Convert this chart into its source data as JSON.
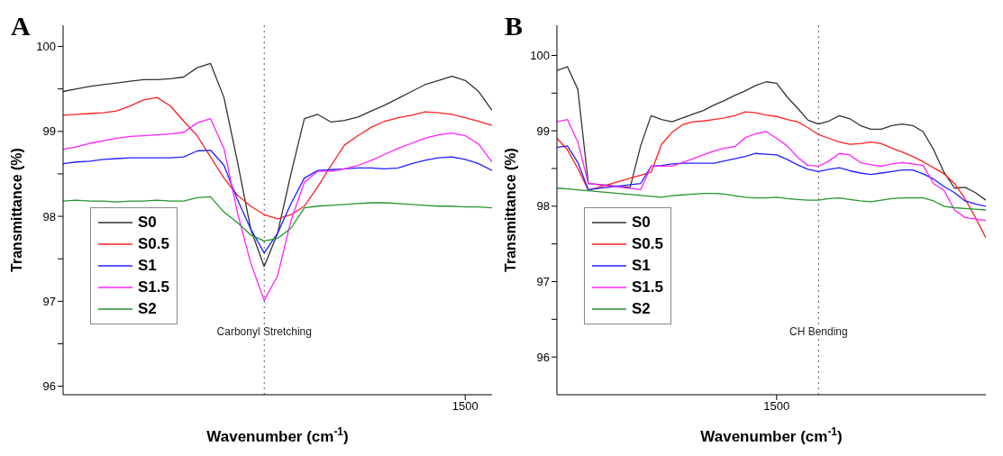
{
  "chart_data": [
    {
      "type": "line",
      "title": "A",
      "xlabel": "Wavenumber (cm$^{-1}$)",
      "ylabel": "Transmittance (%)",
      "categories": [
        null,
        null,
        null,
        null,
        null,
        null,
        null,
        null,
        null,
        null,
        null,
        null,
        null,
        null,
        null,
        null,
        null,
        null,
        null,
        null,
        null,
        null,
        null,
        null,
        null,
        null,
        null,
        null,
        null,
        null,
        "1500",
        null,
        null
      ],
      "ylim": [
        95.9,
        100.25
      ],
      "yticks": [
        96,
        {
          "value": 96.5,
          "label": null
        },
        97,
        {
          "value": 97.5,
          "label": null
        },
        98,
        {
          "value": 98.5,
          "label": null
        },
        99,
        {
          "value": 99.5,
          "label": null
        },
        100
      ],
      "legend": "left",
      "marker": "none",
      "line_style": "solid",
      "annotations": [
        "Carbonyl Stretching"
      ],
      "series": [
        {
          "name": "S0",
          "color": "#333333",
          "values": [
            99.47,
            99.5,
            99.53,
            99.55,
            99.57,
            99.59,
            99.61,
            99.61,
            99.62,
            99.64,
            99.75,
            99.8,
            99.4,
            98.65,
            97.85,
            97.41,
            97.8,
            98.5,
            99.15,
            99.2,
            99.11,
            99.13,
            99.17,
            99.24,
            99.31,
            99.39,
            99.47,
            99.55,
            99.6,
            99.65,
            99.6,
            99.47,
            99.25
          ]
        },
        {
          "name": "S0.5",
          "color": "#ff2020",
          "values": [
            99.19,
            99.2,
            99.21,
            99.22,
            99.24,
            99.3,
            99.37,
            99.4,
            99.3,
            99.12,
            98.95,
            98.7,
            98.45,
            98.25,
            98.12,
            98.02,
            97.97,
            98.02,
            98.12,
            98.35,
            98.6,
            98.84,
            98.95,
            99.05,
            99.12,
            99.16,
            99.19,
            99.23,
            99.22,
            99.2,
            99.16,
            99.12,
            99.07
          ]
        },
        {
          "name": "S1",
          "color": "#2020ff",
          "values": [
            98.62,
            98.64,
            98.65,
            98.67,
            98.68,
            98.69,
            98.69,
            98.69,
            98.69,
            98.7,
            98.77,
            98.78,
            98.6,
            98.2,
            97.85,
            97.57,
            97.8,
            98.15,
            98.45,
            98.54,
            98.55,
            98.56,
            98.57,
            98.57,
            98.56,
            98.57,
            98.62,
            98.66,
            98.69,
            98.7,
            98.67,
            98.62,
            98.54
          ]
        },
        {
          "name": "S1.5",
          "color": "#ff20ff",
          "values": [
            98.79,
            98.82,
            98.86,
            98.89,
            98.92,
            98.94,
            98.95,
            98.96,
            98.97,
            98.99,
            99.1,
            99.15,
            98.8,
            98.05,
            97.45,
            97.01,
            97.3,
            97.95,
            98.4,
            98.53,
            98.53,
            98.56,
            98.6,
            98.66,
            98.73,
            98.8,
            98.86,
            98.92,
            98.96,
            98.98,
            98.95,
            98.85,
            98.64
          ]
        },
        {
          "name": "S2",
          "color": "#22962a",
          "values": [
            98.18,
            98.19,
            98.18,
            98.18,
            98.17,
            98.18,
            98.18,
            98.19,
            98.18,
            98.18,
            98.22,
            98.23,
            98.05,
            97.93,
            97.78,
            97.71,
            97.74,
            97.86,
            98.1,
            98.12,
            98.13,
            98.14,
            98.15,
            98.16,
            98.16,
            98.15,
            98.14,
            98.13,
            98.12,
            98.12,
            98.11,
            98.11,
            98.1
          ]
        }
      ]
    },
    {
      "type": "line",
      "title": "B",
      "xlabel": "Wavenumber (cm$^{-1}$)",
      "ylabel": "Transmittance (%)",
      "categories": [
        null,
        null,
        null,
        null,
        null,
        null,
        null,
        null,
        null,
        null,
        null,
        null,
        null,
        null,
        null,
        null,
        null,
        null,
        null,
        null,
        null,
        "1500",
        null,
        null,
        null,
        null,
        null,
        null,
        null,
        null,
        null,
        null,
        null,
        null,
        null,
        null,
        null,
        null,
        null,
        null,
        null,
        null
      ],
      "ylim": [
        95.5,
        100.4
      ],
      "yticks": [
        96,
        {
          "value": 96.5,
          "label": null
        },
        97,
        {
          "value": 97.5,
          "label": null
        },
        98,
        {
          "value": 98.5,
          "label": null
        },
        99,
        {
          "value": 99.5,
          "label": null
        },
        100
      ],
      "legend": "left",
      "marker": "none",
      "line_style": "solid",
      "annotations": [
        "CH Bending"
      ],
      "series": [
        {
          "name": "S0",
          "color": "#333333",
          "values": [
            99.8,
            99.85,
            99.55,
            98.3,
            null,
            null,
            null,
            98.25,
            98.8,
            99.2,
            99.15,
            99.12,
            99.17,
            99.22,
            99.27,
            99.34,
            99.4,
            99.47,
            99.53,
            99.6,
            99.65,
            99.63,
            99.45,
            99.3,
            99.14,
            99.09,
            99.13,
            99.2,
            99.16,
            99.07,
            99.02,
            99.02,
            99.07,
            99.09,
            99.07,
            98.99,
            98.75,
            98.45,
            98.24,
            98.25,
            98.18,
            98.08
          ]
        },
        {
          "name": "S0.5",
          "color": "#ff2020",
          "values": [
            98.9,
            98.75,
            98.5,
            98.21,
            null,
            null,
            null,
            null,
            null,
            98.45,
            98.82,
            98.98,
            99.08,
            99.12,
            99.13,
            99.15,
            99.17,
            99.2,
            99.25,
            99.24,
            99.21,
            99.19,
            99.15,
            99.12,
            99.04,
            98.95,
            98.9,
            98.85,
            98.82,
            98.83,
            98.85,
            98.83,
            98.77,
            98.72,
            98.66,
            98.59,
            98.51,
            98.43,
            98.3,
            98.1,
            97.85,
            97.58
          ]
        },
        {
          "name": "S1",
          "color": "#2020ff",
          "values": [
            98.78,
            98.8,
            98.58,
            98.22,
            null,
            null,
            null,
            null,
            98.3,
            98.53,
            98.54,
            98.56,
            98.57,
            98.57,
            98.57,
            98.57,
            98.6,
            98.63,
            98.66,
            98.7,
            98.69,
            98.68,
            98.62,
            98.55,
            98.49,
            98.46,
            98.49,
            98.51,
            98.47,
            98.44,
            98.42,
            98.44,
            98.46,
            98.48,
            98.48,
            98.43,
            98.36,
            98.26,
            98.18,
            98.07,
            98.03,
            98.0
          ]
        },
        {
          "name": "S1.5",
          "color": "#ff20ff",
          "values": [
            99.12,
            99.15,
            98.85,
            98.3,
            null,
            null,
            null,
            null,
            98.22,
            98.53,
            98.53,
            98.53,
            98.58,
            98.63,
            98.68,
            98.73,
            98.77,
            98.79,
            98.91,
            98.96,
            98.99,
            98.9,
            98.8,
            98.65,
            98.54,
            98.53,
            98.6,
            98.7,
            98.68,
            98.58,
            98.55,
            98.53,
            98.56,
            98.58,
            98.56,
            98.54,
            98.3,
            98.21,
            97.95,
            97.85,
            97.83,
            97.81
          ]
        },
        {
          "name": "S2",
          "color": "#22962a",
          "values": [
            98.24,
            98.23,
            null,
            null,
            null,
            null,
            null,
            null,
            null,
            null,
            98.12,
            98.14,
            98.15,
            98.16,
            98.17,
            98.17,
            98.16,
            98.14,
            98.12,
            98.11,
            98.11,
            98.12,
            98.1,
            98.09,
            98.08,
            98.08,
            98.1,
            98.11,
            98.09,
            98.07,
            98.06,
            98.08,
            98.1,
            98.11,
            98.11,
            98.11,
            98.07,
            98.0,
            97.98,
            97.97,
            97.96,
            97.95
          ]
        }
      ]
    }
  ]
}
